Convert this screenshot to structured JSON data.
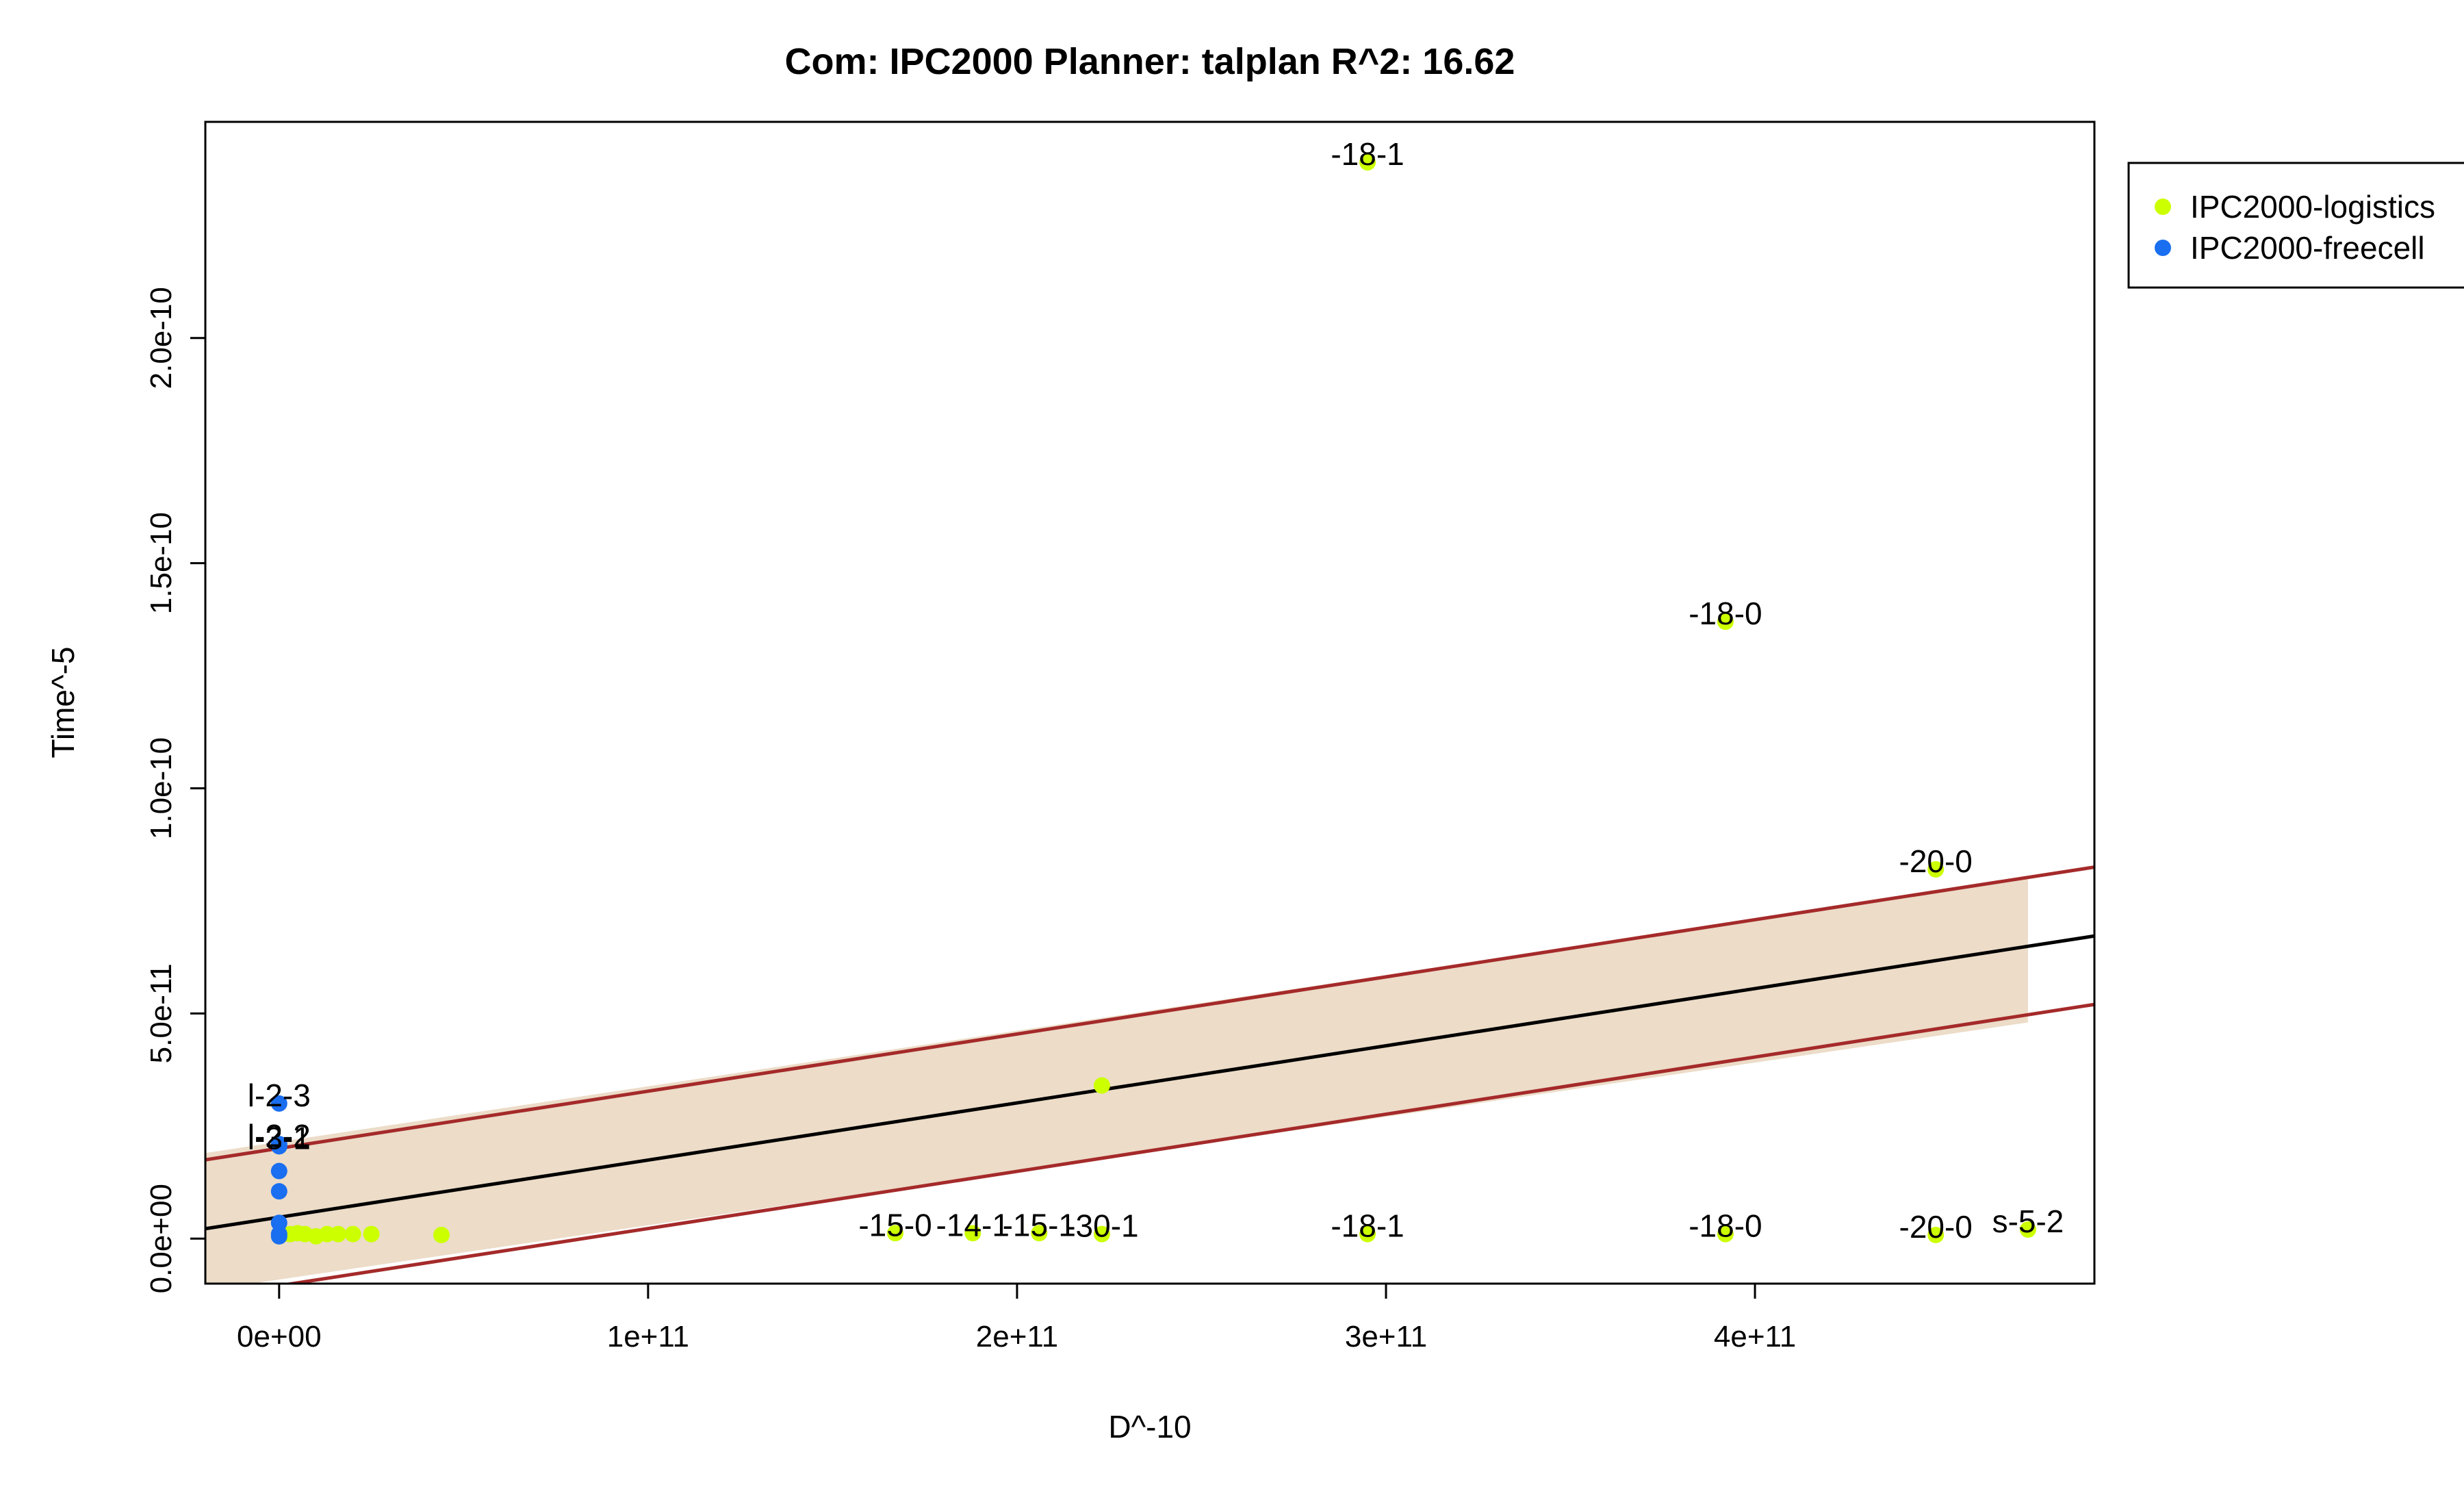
{
  "chart_data": {
    "type": "scatter",
    "title": "Com: IPC2000 Planner: talplan R^2: 16.62",
    "xlabel": "D^-10",
    "ylabel": "Time^-5",
    "xlim": [
      -20000000000.0,
      492000000000.0
    ],
    "ylim": [
      -1e-11,
      2.48e-10
    ],
    "x_ticks": [
      {
        "value": 0,
        "label": "0e+00"
      },
      {
        "value": 100000000000.0,
        "label": "1e+11"
      },
      {
        "value": 200000000000.0,
        "label": "2e+11"
      },
      {
        "value": 300000000000.0,
        "label": "3e+11"
      },
      {
        "value": 400000000000.0,
        "label": "4e+11"
      }
    ],
    "y_ticks": [
      {
        "value": 0,
        "label": "0.0e+00"
      },
      {
        "value": 5e-11,
        "label": "5.0e-11"
      },
      {
        "value": 1e-10,
        "label": "1.0e-10"
      },
      {
        "value": 1.5e-10,
        "label": "1.5e-10"
      },
      {
        "value": 2e-10,
        "label": "2.0e-10"
      }
    ],
    "grid": false,
    "legend_position": "top-right, outside plot",
    "series": [
      {
        "name": "IPC2000-logistics",
        "color": "#ccff00",
        "points": [
          {
            "x": 1000000000.0,
            "y": 1e-12
          },
          {
            "x": 3000000000.0,
            "y": 1e-12
          },
          {
            "x": 5000000000.0,
            "y": 1.2e-12
          },
          {
            "x": 7000000000.0,
            "y": 1e-12
          },
          {
            "x": 10000000000.0,
            "y": 5e-13
          },
          {
            "x": 13000000000.0,
            "y": 1e-12
          },
          {
            "x": 16000000000.0,
            "y": 1e-12
          },
          {
            "x": 20000000000.0,
            "y": 1e-12
          },
          {
            "x": 25000000000.0,
            "y": 1e-12
          },
          {
            "x": 44000000000.0,
            "y": 8e-13
          },
          {
            "x": 167000000000.0,
            "y": 1.2e-12,
            "label": "-15-0"
          },
          {
            "x": 188000000000.0,
            "y": 1.2e-12,
            "label": "-14-1"
          },
          {
            "x": 206000000000.0,
            "y": 1.2e-12,
            "label": "-15-1"
          },
          {
            "x": 223000000000.0,
            "y": 1e-12,
            "label": "-30-1"
          },
          {
            "x": 223000000000.0,
            "y": 3.4e-11
          },
          {
            "x": 295000000000.0,
            "y": 2.39e-10,
            "label": "-18-1"
          },
          {
            "x": 295000000000.0,
            "y": 1e-12,
            "label": "-18-1"
          },
          {
            "x": 392000000000.0,
            "y": 1.37e-10,
            "label": "-18-0"
          },
          {
            "x": 392000000000.0,
            "y": 1e-12,
            "label": "-18-0"
          },
          {
            "x": 449000000000.0,
            "y": 8.2e-11,
            "label": "-20-0"
          },
          {
            "x": 449000000000.0,
            "y": 8e-13,
            "label": "-20-0"
          },
          {
            "x": 474000000000.0,
            "y": 2e-12,
            "label": "s-5-2"
          }
        ]
      },
      {
        "name": "IPC2000-freecell",
        "color": "#1a6ef0",
        "points": [
          {
            "x": 0,
            "y": 3e-11,
            "label": "l-2-3"
          },
          {
            "x": 0,
            "y": 2.1e-11,
            "label": "l-2-2"
          },
          {
            "x": 0,
            "y": 2.05e-11,
            "label": "l-3-1"
          },
          {
            "x": 0,
            "y": 1.5e-11
          },
          {
            "x": 0,
            "y": 1.05e-11
          },
          {
            "x": 0,
            "y": 3.5e-12
          },
          {
            "x": 0,
            "y": 1e-12
          },
          {
            "x": 0,
            "y": 5e-13
          }
        ]
      }
    ],
    "regression": {
      "color": "#000000",
      "start": {
        "x": -20000000000.0,
        "y": 2.2e-12
      },
      "end": {
        "x": 492000000000.0,
        "y": 6.72e-11
      }
    },
    "confidence_band": {
      "color": "#ecdcc8",
      "x_range": [
        -20000000000.0,
        474000000000.0
      ],
      "upper_start": 1.9e-11,
      "upper_end": 8e-11,
      "lower_start": -1.15e-11,
      "lower_end": 4.8e-11
    },
    "prediction_lines": {
      "color": "#a52a2a",
      "upper": {
        "start": {
          "x": -20000000000.0,
          "y": 1.75e-11
        },
        "end": {
          "x": 492000000000.0,
          "y": 8.25e-11
        }
      },
      "lower": {
        "start": {
          "x": -20000000000.0,
          "y": -1.3e-11
        },
        "end": {
          "x": 492000000000.0,
          "y": 5.2e-11
        }
      }
    }
  }
}
